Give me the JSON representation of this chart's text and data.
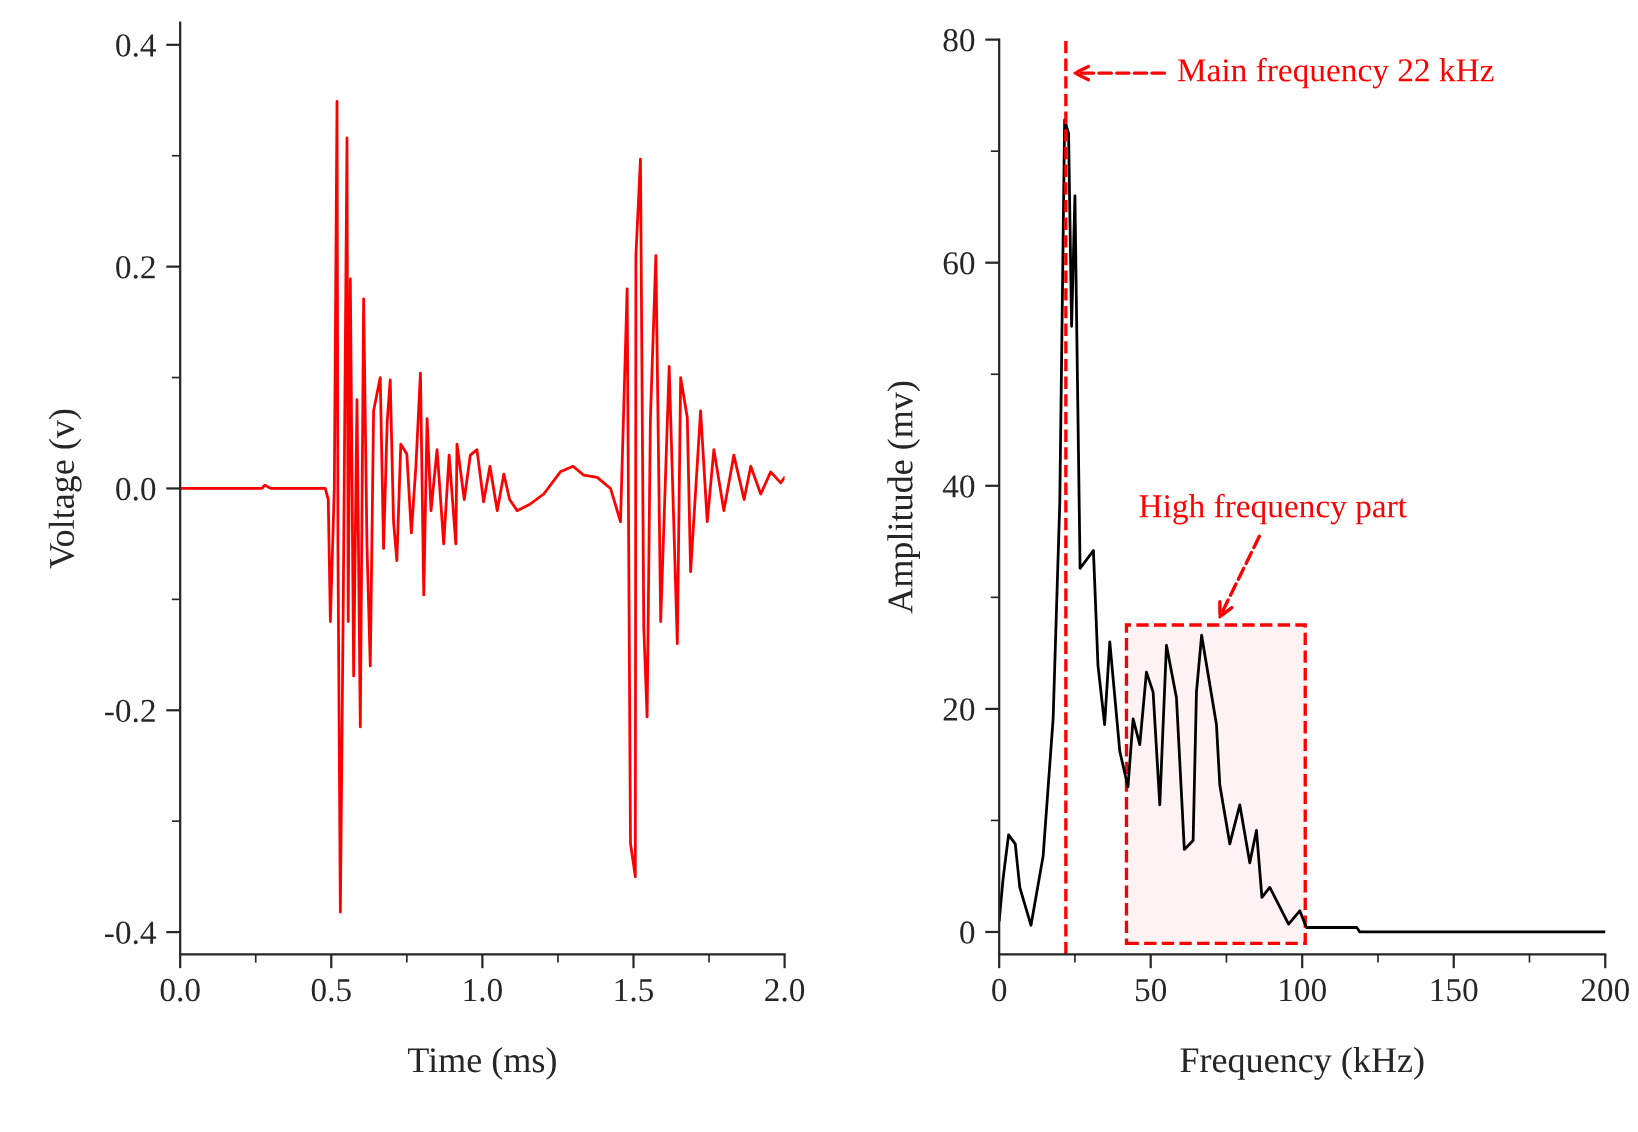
{
  "chart_data": [
    {
      "type": "line",
      "xlabel": "Time (ms)",
      "ylabel": "Voltage (v)",
      "xlim": [
        0,
        2.0
      ],
      "xticks": [
        {
          "value": 0,
          "label": "0.0"
        },
        0.5,
        {
          "value": 1,
          "label": "1.0"
        },
        1.5,
        {
          "value": 2,
          "label": "2.0"
        }
      ],
      "ylim": [
        -0.42,
        0.42
      ],
      "yticks": [
        -0.4,
        -0.2,
        {
          "value": 0,
          "label": "0.0"
        },
        0.2,
        0.4
      ],
      "grid": false,
      "legend": false,
      "marker": "none",
      "line_style": "solid",
      "series": [
        {
          "color": "#ff0000",
          "x": [
            0,
            0.27,
            0.28,
            0.3,
            0.48,
            0.49,
            0.497,
            0.51,
            0.519,
            0.522,
            0.53,
            0.54,
            0.552,
            0.556,
            0.563,
            0.574,
            0.585,
            0.596,
            0.607,
            0.618,
            0.629,
            0.64,
            0.662,
            0.673,
            0.685,
            0.695,
            0.706,
            0.717,
            0.73,
            0.75,
            0.765,
            0.78,
            0.795,
            0.806,
            0.817,
            0.83,
            0.85,
            0.872,
            0.89,
            0.912,
            0.916,
            0.94,
            0.96,
            0.982,
            1.004,
            1.025,
            1.049,
            1.071,
            1.09,
            1.115,
            1.159,
            1.203,
            1.258,
            1.3,
            1.335,
            1.38,
            1.424,
            1.457,
            1.479,
            1.49,
            1.506,
            1.508,
            1.523,
            1.534,
            1.545,
            1.556,
            1.574,
            1.59,
            1.618,
            1.645,
            1.656,
            1.678,
            1.689,
            1.722,
            1.744,
            1.766,
            1.799,
            1.832,
            1.866,
            1.888,
            1.921,
            1.954,
            1.987,
            2.0
          ],
          "values": [
            0,
            0,
            0.003,
            0,
            0,
            -0.01,
            -0.12,
            0.0,
            0.349,
            -0.05,
            -0.382,
            -0.09,
            0.316,
            -0.12,
            0.189,
            -0.169,
            0.08,
            -0.215,
            0.171,
            -0.05,
            -0.16,
            0.07,
            0.1,
            -0.054,
            0.06,
            0.098,
            -0.03,
            -0.065,
            0.04,
            0.031,
            -0.04,
            0.02,
            0.104,
            -0.096,
            0.063,
            -0.02,
            0.035,
            -0.05,
            0.03,
            -0.05,
            0.04,
            -0.01,
            0.03,
            0.035,
            -0.012,
            0.02,
            -0.02,
            0.013,
            -0.01,
            -0.02,
            -0.014,
            -0.005,
            0.015,
            0.02,
            0.012,
            0.01,
            0.0,
            -0.03,
            0.18,
            -0.32,
            -0.35,
            0.21,
            0.297,
            -0.125,
            -0.206,
            0.063,
            0.21,
            -0.12,
            0.11,
            -0.14,
            0.1,
            0.064,
            -0.075,
            0.07,
            -0.03,
            0.035,
            -0.02,
            0.03,
            -0.01,
            0.02,
            -0.005,
            0.015,
            0.005,
            0.01
          ]
        }
      ]
    },
    {
      "type": "line",
      "xlabel": "Frequency (kHz)",
      "ylabel": "Amplitude (mv)",
      "xlim": [
        0,
        200
      ],
      "xticks": [
        0,
        50,
        100,
        150,
        200
      ],
      "ylim": [
        -2,
        80
      ],
      "yticks": [
        0,
        20,
        40,
        60,
        80
      ],
      "grid": false,
      "legend": false,
      "marker": "none",
      "line_style": "solid",
      "annotations": [
        {
          "text": "Main frequency 22 kHz",
          "x": 22,
          "y": 77
        },
        "High frequency part"
      ],
      "ref_lines": [
        {
          "axis": "x",
          "value": 22,
          "color": "#ff0000",
          "line_style": "dashed"
        }
      ],
      "bands": [
        {
          "axis": "x",
          "from": 42,
          "to": 101,
          "color": "#ff0000"
        }
      ],
      "series": [
        {
          "color": "#000000",
          "x": [
            0,
            1.3,
            3.1,
            5.3,
            6.8,
            10.5,
            14.5,
            17.8,
            20,
            21.6,
            22.9,
            23.9,
            25,
            25.6,
            26.7,
            31.1,
            32.6,
            34.8,
            36.5,
            39.8,
            42.5,
            44.2,
            46.4,
            48.6,
            50.8,
            53,
            55.2,
            58.5,
            61.1,
            64,
            65.1,
            66.8,
            71.7,
            72.8,
            76.1,
            79.4,
            82.7,
            84.9,
            86.7,
            89.3,
            95.5,
            99.2,
            101.4,
            118,
            119,
            200
          ],
          "values": [
            1,
            4.8,
            8.7,
            7.9,
            4.0,
            0.6,
            6.8,
            19.1,
            38.5,
            72.8,
            71.6,
            54.3,
            66,
            54,
            32.6,
            34.2,
            23.9,
            18.6,
            26,
            16.2,
            13,
            19.1,
            16.8,
            23.3,
            21.5,
            11.4,
            25.7,
            21,
            7.4,
            8.2,
            21.5,
            26.6,
            18.6,
            13.2,
            7.9,
            11.4,
            6.2,
            9.1,
            3.1,
            4,
            0.7,
            1.9,
            0.4,
            0.4,
            0,
            0
          ]
        }
      ]
    }
  ]
}
